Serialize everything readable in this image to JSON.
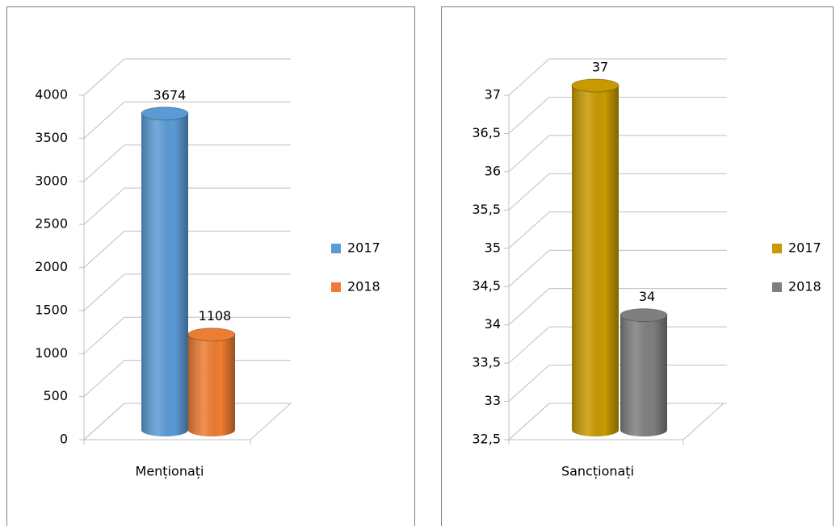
{
  "chart_data": [
    {
      "type": "bar",
      "categories": [
        "Menționați"
      ],
      "series": [
        {
          "name": "2017",
          "color": "#5b9bd5",
          "values": [
            3674
          ]
        },
        {
          "name": "2018",
          "color": "#ed7d31",
          "values": [
            1108
          ]
        }
      ],
      "ylim": [
        0,
        4000
      ],
      "yticks": [
        0,
        500,
        1000,
        1500,
        2000,
        2500,
        3000,
        3500,
        4000
      ],
      "grid": true,
      "legend": "right"
    },
    {
      "type": "bar",
      "categories": [
        "Sancționați"
      ],
      "series": [
        {
          "name": "2017",
          "color": "#c79a00",
          "values": [
            37
          ]
        },
        {
          "name": "2018",
          "color": "#7f7f7f",
          "values": [
            34
          ]
        }
      ],
      "ylim": [
        32.5,
        37
      ],
      "yticks": [
        {
          "value": 32.5,
          "label": "32,5"
        },
        33,
        {
          "value": 33.5,
          "label": "33,5"
        },
        34,
        {
          "value": 34.5,
          "label": "34,5"
        },
        35,
        {
          "value": 35.5,
          "label": "35,5"
        },
        36,
        {
          "value": 36.5,
          "label": "36,5"
        },
        37
      ],
      "grid": true,
      "legend": "right"
    }
  ]
}
